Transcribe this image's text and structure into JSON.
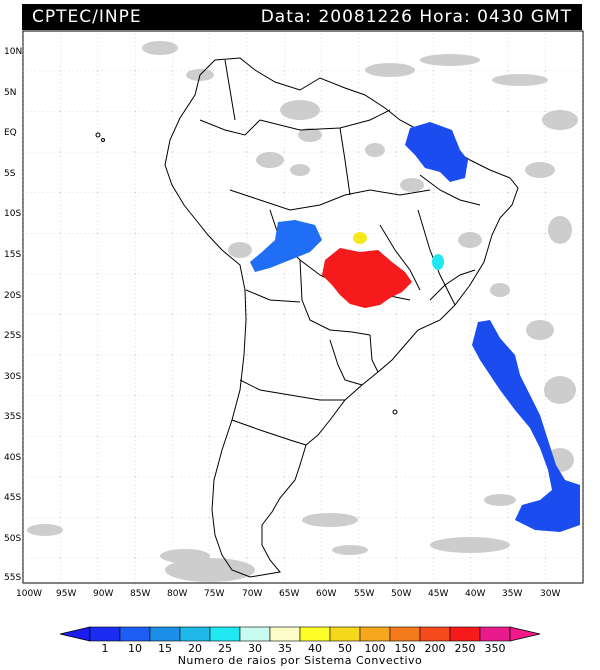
{
  "header": {
    "title_left": "CPTEC/INPE",
    "title_right": "Data: 20081226 Hora: 0430 GMT"
  },
  "map": {
    "lat_labels": [
      "10N",
      "5N",
      "EQ",
      "5S",
      "10S",
      "15S",
      "20S",
      "25S",
      "30S",
      "35S",
      "40S",
      "45S",
      "50S",
      "55S"
    ],
    "lon_labels": [
      "100W",
      "95W",
      "90W",
      "85W",
      "80W",
      "75W",
      "70W",
      "65W",
      "60W",
      "55W",
      "50W",
      "45W",
      "40W",
      "35W",
      "30W"
    ]
  },
  "legend": {
    "values": [
      "1",
      "10",
      "15",
      "20",
      "25",
      "30",
      "35",
      "40",
      "50",
      "100",
      "150",
      "200",
      "250",
      "350"
    ],
    "colors": [
      "#1a2cf0",
      "#1f5ef5",
      "#1e8fe8",
      "#1fb8e8",
      "#1fe8f0",
      "#c8fcf0",
      "#fdfdc8",
      "#fdfd2a",
      "#f5d81c",
      "#f5a81c",
      "#f57a1c",
      "#f54a1c",
      "#f51a1c",
      "#e81a8c"
    ],
    "caption": "Numero de raios por Sistema Convectivo"
  },
  "systems": {
    "colors": {
      "blue": "#1a4cf0",
      "mid_blue": "#1f6ef5",
      "cyan": "#20e8f0",
      "yellow": "#f5e81c",
      "red": "#f51a1c"
    }
  }
}
